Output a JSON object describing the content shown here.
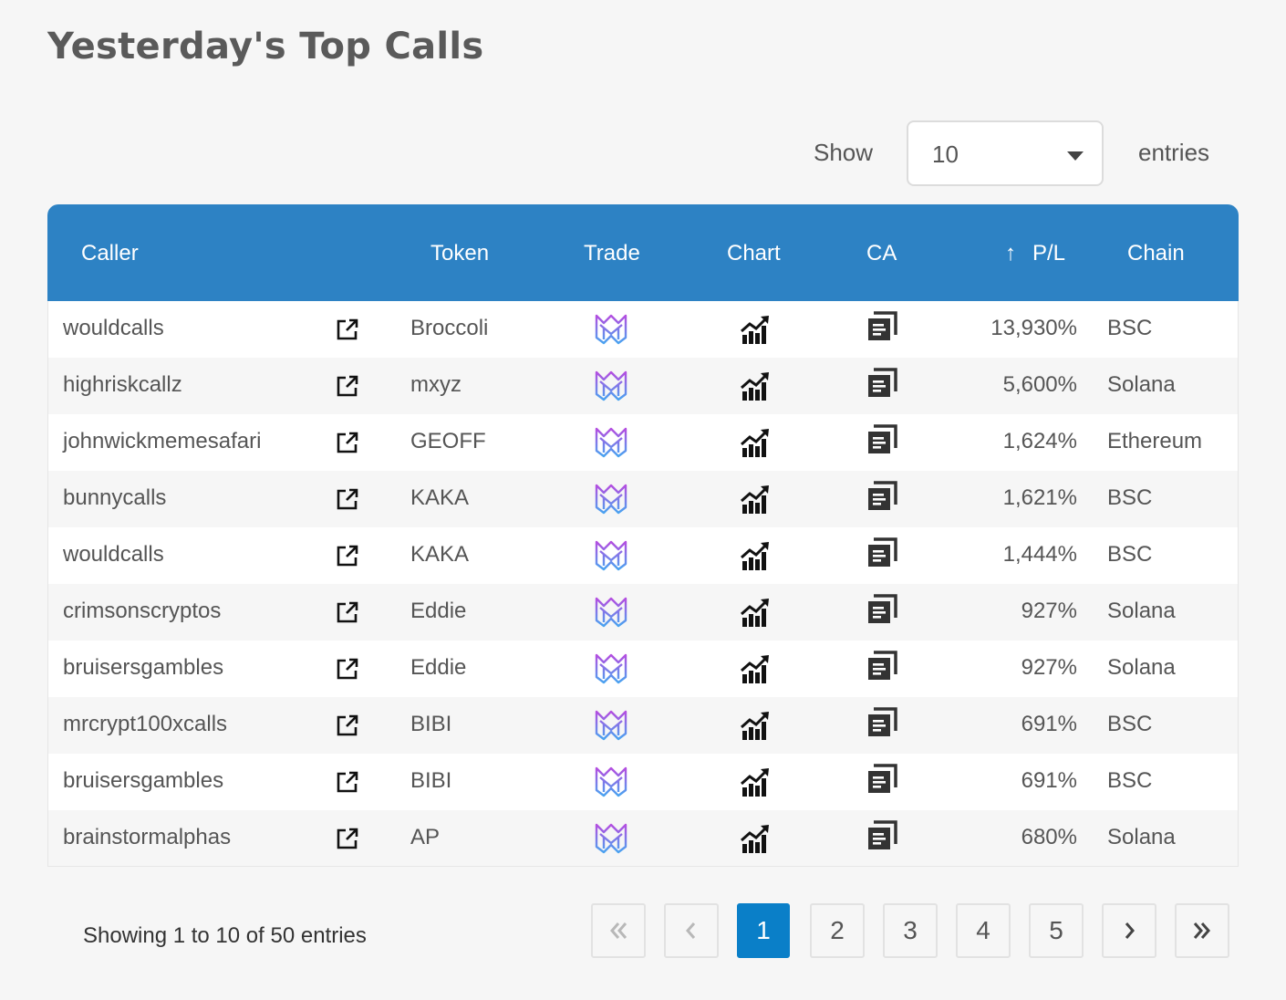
{
  "title": "Yesterday's Top Calls",
  "length_menu": {
    "show_label": "Show",
    "selected": "10",
    "entries_label": "entries"
  },
  "columns": {
    "caller": "Caller",
    "token": "Token",
    "trade": "Trade",
    "chart": "Chart",
    "ca": "CA",
    "pl": "P/L",
    "pl_sort_arrow": "↑",
    "chain": "Chain"
  },
  "rows": [
    {
      "caller": "wouldcalls",
      "token": "Broccoli",
      "pl": "13,930%",
      "chain": "BSC"
    },
    {
      "caller": "highriskcallz",
      "token": "mxyz",
      "pl": "5,600%",
      "chain": "Solana"
    },
    {
      "caller": "johnwickmemesafari",
      "token": "GEOFF",
      "pl": "1,624%",
      "chain": "Ethereum"
    },
    {
      "caller": "bunnycalls",
      "token": "KAKA",
      "pl": "1,621%",
      "chain": "BSC"
    },
    {
      "caller": "wouldcalls",
      "token": "KAKA",
      "pl": "1,444%",
      "chain": "BSC"
    },
    {
      "caller": "crimsonscryptos",
      "token": "Eddie",
      "pl": "927%",
      "chain": "Solana"
    },
    {
      "caller": "bruisersgambles",
      "token": "Eddie",
      "pl": "927%",
      "chain": "Solana"
    },
    {
      "caller": "mrcrypt100xcalls",
      "token": "BIBI",
      "pl": "691%",
      "chain": "BSC"
    },
    {
      "caller": "bruisersgambles",
      "token": "BIBI",
      "pl": "691%",
      "chain": "BSC"
    },
    {
      "caller": "brainstormalphas",
      "token": "AP",
      "pl": "680%",
      "chain": "Solana"
    }
  ],
  "icons": {
    "caller_link": "external-link-icon",
    "trade": "trade-logo-icon",
    "chart": "chart-icon",
    "ca": "copy-icon"
  },
  "colors": {
    "header_bg": "#2d82c4",
    "active_page": "#0a7fc8",
    "trade_logo_top": "#b44ee0",
    "trade_logo_bottom": "#4aa3f0"
  },
  "info": "Showing 1 to 10 of 50 entries",
  "pagination": {
    "pages": [
      "1",
      "2",
      "3",
      "4",
      "5"
    ],
    "current": "1"
  }
}
